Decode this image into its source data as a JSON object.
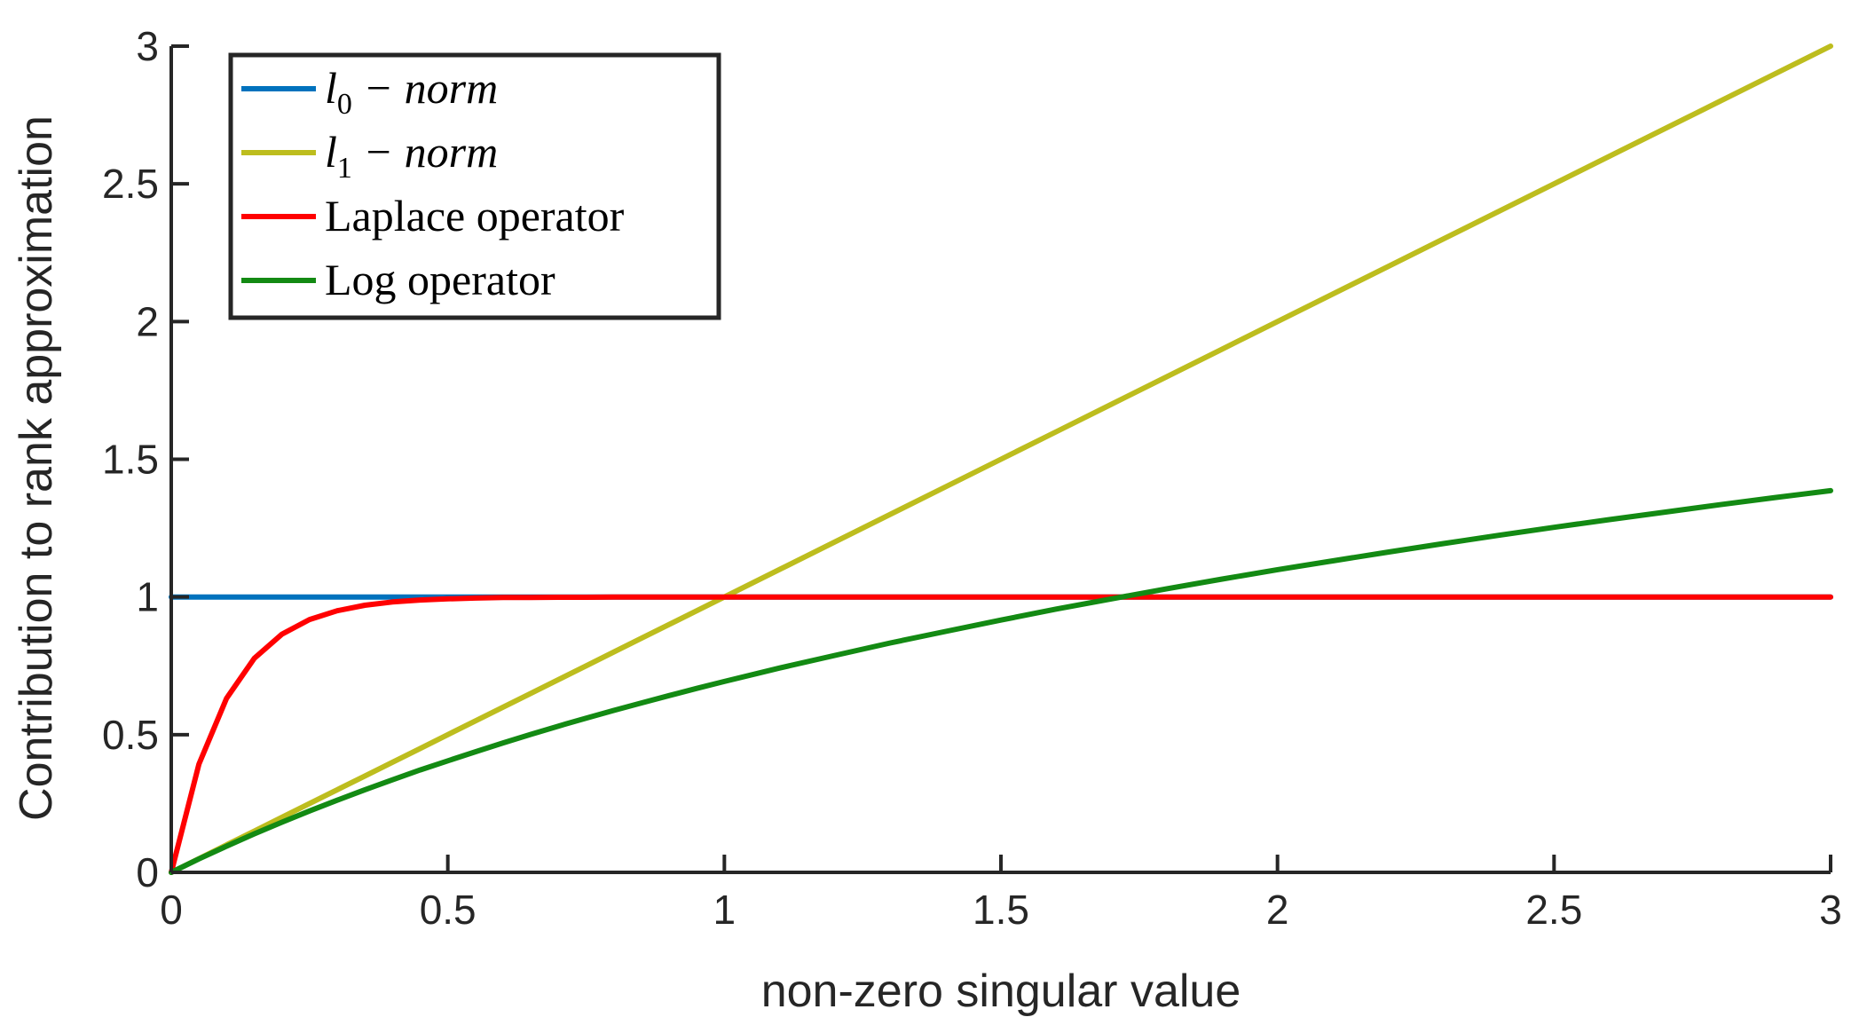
{
  "chart_data": {
    "type": "line",
    "xlabel": "non-zero singular value",
    "ylabel": "Contribution to rank approximation",
    "xlim": [
      0,
      3
    ],
    "ylim": [
      0,
      3
    ],
    "xticks": [
      "0",
      "0.5",
      "1",
      "1.5",
      "2",
      "2.5",
      "3"
    ],
    "yticks": [
      "0",
      "0.5",
      "1",
      "1.5",
      "2",
      "2.5",
      "3"
    ],
    "grid": false,
    "legend": "top-left",
    "x": [
      0,
      0.05,
      0.1,
      0.15,
      0.2,
      0.25,
      0.3,
      0.35,
      0.4,
      0.45,
      0.5,
      0.55,
      0.6,
      0.65,
      0.7,
      0.75,
      0.8,
      0.85,
      0.9,
      0.95,
      1.0,
      1.1,
      1.2,
      1.3,
      1.4,
      1.5,
      1.6,
      1.7,
      1.8,
      1.9,
      2.0,
      2.1,
      2.2,
      2.3,
      2.4,
      2.5,
      2.6,
      2.7,
      2.8,
      2.9,
      3.0
    ],
    "series": [
      {
        "name_parts": [
          "l",
          "0",
          " − norm"
        ],
        "color": "#0072BD",
        "values": [
          1,
          1,
          1,
          1,
          1,
          1,
          1,
          1,
          1,
          1,
          1,
          1,
          1,
          1,
          1,
          1,
          1,
          1,
          1,
          1,
          1,
          1,
          1,
          1,
          1,
          1,
          1,
          1,
          1,
          1,
          1,
          1,
          1,
          1,
          1,
          1,
          1,
          1,
          1,
          1,
          1
        ]
      },
      {
        "name_parts": [
          "l",
          "1",
          " − norm"
        ],
        "color": "#BDBD1E",
        "values": [
          0,
          0.05,
          0.1,
          0.15,
          0.2,
          0.25,
          0.3,
          0.35,
          0.4,
          0.45,
          0.5,
          0.55,
          0.6,
          0.65,
          0.7,
          0.75,
          0.8,
          0.85,
          0.9,
          0.95,
          1.0,
          1.1,
          1.2,
          1.3,
          1.4,
          1.5,
          1.6,
          1.7,
          1.8,
          1.9,
          2.0,
          2.1,
          2.2,
          2.3,
          2.4,
          2.5,
          2.6,
          2.7,
          2.8,
          2.9,
          3.0
        ]
      },
      {
        "name": "Laplace operator",
        "color": "#FF0000",
        "values": [
          0,
          0.393,
          0.632,
          0.777,
          0.865,
          0.918,
          0.95,
          0.97,
          0.982,
          0.989,
          0.993,
          0.996,
          0.998,
          0.998,
          0.999,
          0.999,
          1.0,
          1.0,
          1.0,
          1.0,
          1.0,
          1.0,
          1.0,
          1.0,
          1.0,
          1.0,
          1.0,
          1.0,
          1.0,
          1.0,
          1.0,
          1.0,
          1.0,
          1.0,
          1.0,
          1.0,
          1.0,
          1.0,
          1.0,
          1.0,
          1.0
        ]
      },
      {
        "name": "Log operator",
        "color": "#138A13",
        "values": [
          0,
          0.049,
          0.095,
          0.14,
          0.182,
          0.223,
          0.262,
          0.3,
          0.336,
          0.372,
          0.405,
          0.438,
          0.47,
          0.501,
          0.531,
          0.56,
          0.588,
          0.615,
          0.642,
          0.668,
          0.693,
          0.742,
          0.788,
          0.833,
          0.875,
          0.916,
          0.956,
          0.993,
          1.03,
          1.065,
          1.099,
          1.131,
          1.163,
          1.194,
          1.224,
          1.253,
          1.281,
          1.308,
          1.335,
          1.361,
          1.386
        ]
      }
    ]
  }
}
